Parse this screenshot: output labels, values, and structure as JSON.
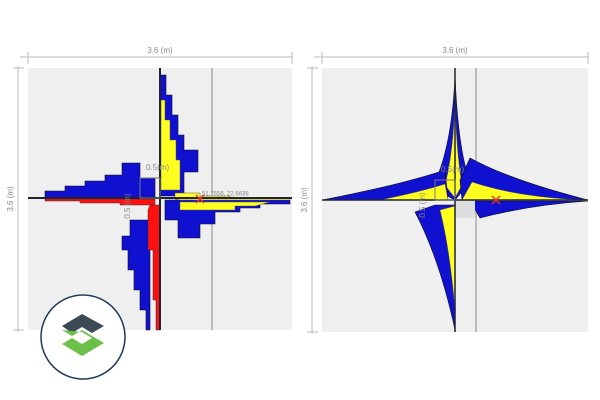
{
  "panels": [
    {
      "width_label": "3.6 (m)",
      "height_label": "3.6 (m)",
      "cell_width_label": "0.5(m)",
      "cell_height_label": "0.5 (m)",
      "point_label": "51.7656, 22.6638"
    },
    {
      "width_label": "3.6 (m)",
      "height_label": "3.6 (m)",
      "cell_width_label": "0.5(m)",
      "cell_height_label": "0.5 (m)"
    }
  ]
}
